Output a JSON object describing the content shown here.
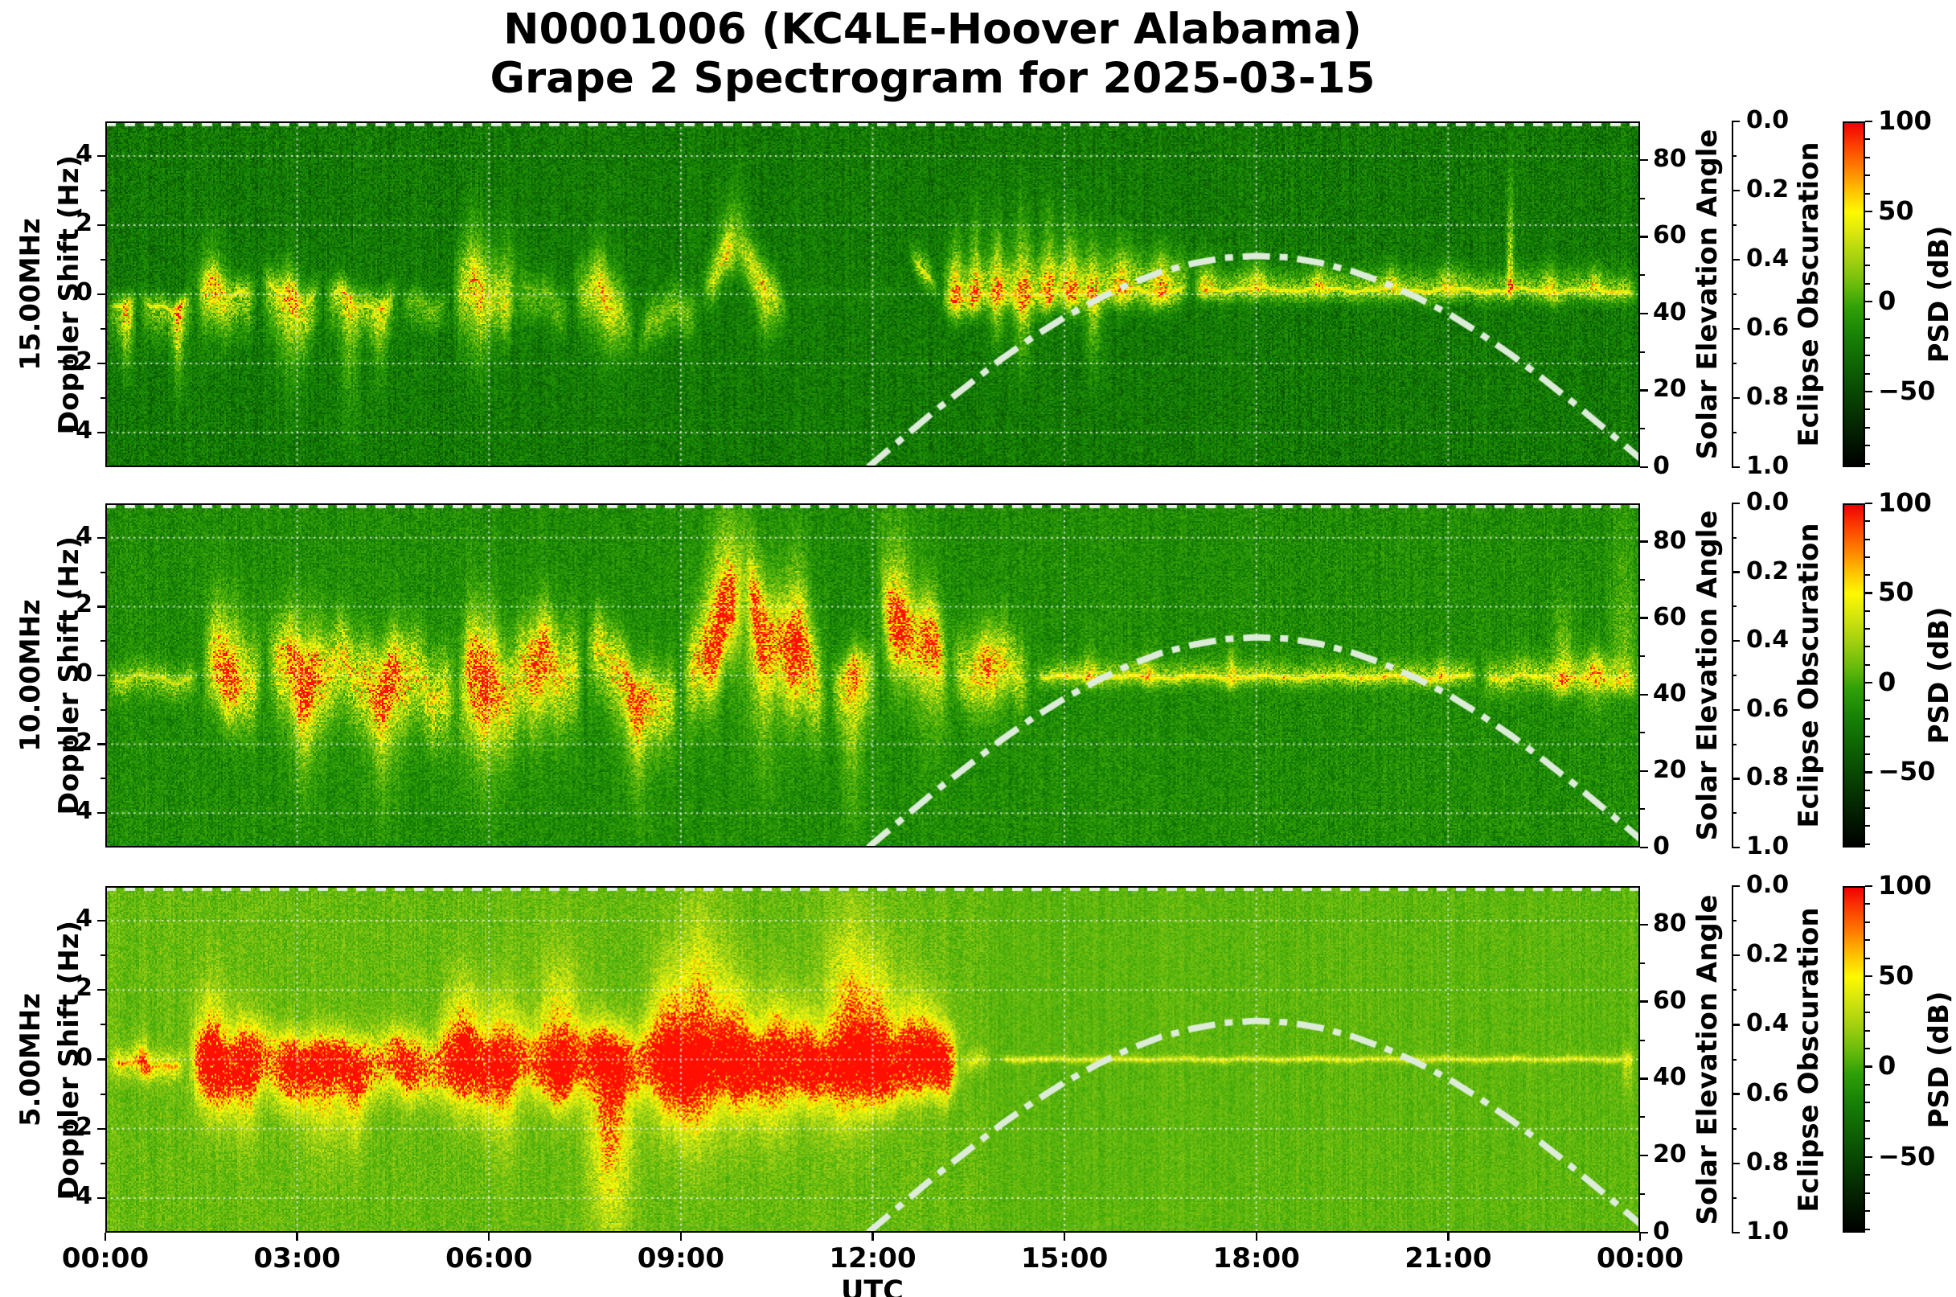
{
  "title": {
    "line1": "N0001006 (KC4LE-Hoover Alabama)",
    "line2": "Grape 2 Spectrogram for 2025-03-15"
  },
  "x_axis": {
    "label": "UTC",
    "tick_labels": [
      "00:00",
      "03:00",
      "06:00",
      "09:00",
      "12:00",
      "15:00",
      "18:00",
      "21:00",
      "00:00"
    ]
  },
  "panels": [
    {
      "freq_label": "15.00MHz",
      "doppler_label": "Doppler Shift (Hz)",
      "y_tick_labels": [
        "4",
        "2",
        "0",
        "−2",
        "−4"
      ]
    },
    {
      "freq_label": "10.00MHz",
      "doppler_label": "Doppler Shift (Hz)",
      "y_tick_labels": [
        "4",
        "2",
        "0",
        "−2",
        "−4"
      ]
    },
    {
      "freq_label": "5.00MHz",
      "doppler_label": "Doppler Shift (Hz)",
      "y_tick_labels": [
        "4",
        "2",
        "0",
        "−2",
        "−4"
      ]
    }
  ],
  "right_axes": {
    "solar": {
      "label": "Solar Elevation Angle",
      "tick_labels": [
        "80",
        "60",
        "40",
        "20",
        "0"
      ],
      "tick_values": [
        80,
        60,
        40,
        20,
        0
      ],
      "range": [
        0,
        90
      ]
    },
    "eclipse": {
      "label": "Eclipse Obscuration",
      "tick_labels": [
        "0.0",
        "0.2",
        "0.4",
        "0.6",
        "0.8",
        "1.0"
      ],
      "tick_values": [
        0,
        0.2,
        0.4,
        0.6,
        0.8,
        1.0
      ],
      "range": [
        0,
        1
      ],
      "inverted": true
    },
    "colorbar": {
      "label": "PSD (dB)",
      "tick_labels": [
        "100",
        "50",
        "0",
        "−50"
      ],
      "tick_values": [
        100,
        50,
        0,
        -50
      ],
      "range_top_to_bottom": [
        100,
        -92
      ]
    }
  },
  "colors": {
    "solar_curve": "#dcecd9",
    "eclipse_curve": "#e4f1e3",
    "grid": "rgba(255,255,255,0.72)",
    "figure_bg": "#ffffff"
  },
  "chart_data": {
    "type": "spectrogram",
    "x_range_hours": [
      0,
      24
    ],
    "doppler_range_hz": [
      -5,
      5
    ],
    "solar_elevation_range_deg": [
      0,
      90
    ],
    "eclipse_obscuration_range": [
      0,
      1
    ],
    "psd_range_db_top_to_bottom": [
      100,
      -92
    ],
    "grid": true,
    "value_colormap": [
      [
        0,
        "#053a01"
      ],
      [
        0.1,
        "#0b6202"
      ],
      [
        0.17,
        "#117a04"
      ],
      [
        0.24,
        "#1f8c05"
      ],
      [
        0.32,
        "#35a007"
      ],
      [
        0.4,
        "#55b30c"
      ],
      [
        0.48,
        "#79c011"
      ],
      [
        0.56,
        "#a2d214"
      ],
      [
        0.64,
        "#c8e312"
      ],
      [
        0.72,
        "#e8ef0c"
      ],
      [
        0.78,
        "#fdfd02"
      ],
      [
        0.84,
        "#ffd000"
      ],
      [
        0.9,
        "#ff9000"
      ],
      [
        0.95,
        "#ff4d00"
      ],
      [
        1,
        "#ff0f00"
      ]
    ],
    "colorbar_gradient": [
      [
        0,
        "#f20000"
      ],
      [
        0.06,
        "#fb3b00"
      ],
      [
        0.13,
        "#ff7e00"
      ],
      [
        0.2,
        "#ffc400"
      ],
      [
        0.26,
        "#fef900"
      ],
      [
        0.32,
        "#d9e70b"
      ],
      [
        0.4,
        "#a3d011"
      ],
      [
        0.48,
        "#64b90c"
      ],
      [
        0.54,
        "#2fa006"
      ],
      [
        0.62,
        "#188206"
      ],
      [
        0.7,
        "#0f6604"
      ],
      [
        0.78,
        "#094a03"
      ],
      [
        0.86,
        "#052e02"
      ],
      [
        1,
        "#000000"
      ]
    ],
    "solar_elevation": {
      "style": "dashdot",
      "points": [
        [
          11.93,
          0
        ],
        [
          12,
          1
        ],
        [
          12.5,
          8
        ],
        [
          13,
          15
        ],
        [
          13.5,
          21.5
        ],
        [
          14,
          28
        ],
        [
          14.5,
          33.8
        ],
        [
          15,
          39
        ],
        [
          15.5,
          43.6
        ],
        [
          16,
          47.6
        ],
        [
          16.5,
          50.8
        ],
        [
          17,
          53
        ],
        [
          17.5,
          54.5
        ],
        [
          18,
          55
        ],
        [
          18.5,
          54.6
        ],
        [
          19,
          53.2
        ],
        [
          19.5,
          51
        ],
        [
          20,
          48
        ],
        [
          20.5,
          44.3
        ],
        [
          21,
          40
        ],
        [
          21.5,
          34.8
        ],
        [
          22,
          29.1
        ],
        [
          22.5,
          22.8
        ],
        [
          23,
          16.2
        ],
        [
          23.5,
          9.3
        ],
        [
          24,
          2.3
        ],
        [
          24.1,
          0
        ]
      ]
    },
    "eclipse_obscuration": {
      "style": "dashed",
      "constant_value": 0.0
    },
    "spectrograms": [
      {
        "frequency_mhz": 15.0,
        "seed": 11,
        "core_width_hz": 0.09,
        "core_value": 0.78,
        "hot_value": 0.85,
        "hot_prob": 0.02,
        "zones": [
          [
            0,
            24,
            0.17,
            0.17
          ]
        ],
        "events": [
          [
            0,
            0.5,
            -0.3,
            -0.35,
            0.35,
            1.1,
            0.9,
            0.4,
            0.1
          ],
          [
            0.5,
            1.4,
            -0.35,
            -0.25,
            0.35,
            0.9,
            0.9,
            0.4,
            0.15
          ],
          [
            1.4,
            2.4,
            0.1,
            0.2,
            0.5,
            1.1,
            0.9,
            0.45,
            0.2
          ],
          [
            2.4,
            3.4,
            0,
            0,
            0.5,
            1.2,
            0.9,
            0.45,
            0.25
          ],
          [
            3.4,
            4.6,
            -0.1,
            -0.3,
            0.5,
            0.9,
            0.85,
            0.4,
            0.2
          ],
          [
            4.6,
            5.4,
            -0.3,
            -0.2,
            0.4,
            0.7,
            0.45,
            0.3,
            0.15
          ],
          [
            5.4,
            6.4,
            0,
            0,
            1.1,
            1.1,
            0.65,
            0.4,
            0.2
          ],
          [
            6.4,
            7.3,
            -0.2,
            -0.2,
            0.7,
            0.8,
            0.4,
            0.28,
            0.2
          ],
          [
            7.3,
            8.3,
            0.3,
            -0.8,
            0.9,
            0.9,
            0.7,
            0.4,
            0.25
          ],
          [
            8.3,
            9.3,
            -1.2,
            -0.2,
            0.7,
            0.7,
            0.55,
            0.35,
            0.25
          ],
          [
            9.3,
            9.9,
            0.2,
            1.4,
            0.6,
            0.8,
            0.8,
            0.4,
            0.15
          ],
          [
            9.9,
            10.7,
            1.4,
            -0.6,
            0.6,
            0.8,
            0.75,
            0.38,
            0.15
          ],
          [
            10.7,
            12.55,
            0,
            0,
            0.3,
            0.3,
            0.06,
            0.05,
            0
          ],
          [
            12.55,
            13.05,
            1.3,
            -0.15,
            0.5,
            0.4,
            0.95,
            0.5,
            0.1
          ],
          [
            13.05,
            17,
            -0.1,
            0.15,
            1.0,
            0.5,
            1.0,
            0.5,
            0.07
          ],
          [
            17,
            24,
            0.15,
            0.1,
            0.55,
            0.35,
            1.0,
            0.42,
            0.05
          ]
        ],
        "spikes": [
          [
            0.35,
            0.3,
            1.9,
            0.12,
            0.55
          ],
          [
            1.15,
            0.3,
            2.3,
            0.12,
            0.6
          ],
          [
            1.7,
            1.3,
            1.5,
            0.3,
            0.4
          ],
          [
            2.9,
            1.1,
            2.6,
            0.3,
            0.4
          ],
          [
            3.8,
            0.4,
            3.4,
            0.2,
            0.38
          ],
          [
            4.3,
            0.3,
            2.3,
            0.18,
            0.33
          ],
          [
            5.8,
            2.3,
            2.4,
            0.3,
            0.42
          ],
          [
            6.3,
            2.1,
            1.0,
            0.2,
            0.33
          ],
          [
            7.8,
            1.5,
            1.8,
            0.3,
            0.38
          ],
          [
            9.8,
            1.6,
            0.8,
            0.35,
            0.4
          ],
          [
            10.3,
            1.0,
            1.8,
            0.25,
            0.35
          ],
          [
            13.3,
            2.0,
            0.8,
            0.15,
            0.5
          ],
          [
            13.6,
            2.5,
            0.6,
            0.12,
            0.5
          ],
          [
            13.95,
            2.2,
            1.5,
            0.15,
            0.5
          ],
          [
            14.35,
            2.6,
            1.9,
            0.18,
            0.52
          ],
          [
            14.75,
            2.3,
            0.6,
            0.15,
            0.5
          ],
          [
            15.1,
            2.2,
            0.7,
            0.18,
            0.5
          ],
          [
            15.45,
            1.9,
            2.1,
            0.15,
            0.45
          ],
          [
            15.9,
            1.6,
            0.6,
            0.2,
            0.42
          ],
          [
            16.5,
            1.3,
            0.5,
            0.2,
            0.4
          ],
          [
            17.2,
            1.1,
            0.4,
            0.2,
            0.36
          ],
          [
            18.0,
            0.9,
            0.4,
            0.2,
            0.33
          ],
          [
            19.0,
            0.8,
            0.4,
            0.2,
            0.33
          ],
          [
            20.1,
            0.7,
            0.4,
            0.2,
            0.3
          ],
          [
            21.0,
            0.8,
            0.4,
            0.18,
            0.33
          ],
          [
            21.97,
            3.2,
            0.3,
            0.07,
            0.6
          ],
          [
            22.6,
            0.9,
            0.4,
            0.18,
            0.33
          ],
          [
            23.3,
            0.8,
            0.4,
            0.15,
            0.33
          ]
        ]
      },
      {
        "frequency_mhz": 10.0,
        "seed": 23,
        "core_width_hz": 0.11,
        "core_value": 0.78,
        "hot_value": 0.9,
        "hot_prob": 0.06,
        "zones": [
          [
            0,
            24,
            0.24,
            0.18
          ]
        ],
        "events": [
          [
            0,
            1.5,
            -0.1,
            -0.1,
            0.45,
            0.55,
            0.8,
            0.35,
            0.1
          ],
          [
            1.5,
            2.5,
            0,
            0,
            1.5,
            1.3,
            0.85,
            0.5,
            0.3
          ],
          [
            2.5,
            5.5,
            0.3,
            -0.4,
            1.3,
            1.5,
            0.95,
            0.55,
            0.35
          ],
          [
            5.5,
            7.5,
            -0.5,
            0.5,
            1.5,
            1.7,
            0.95,
            0.55,
            0.4
          ],
          [
            7.5,
            9.0,
            0.8,
            -1.3,
            1.1,
            1.4,
            0.95,
            0.55,
            0.3
          ],
          [
            9.0,
            10.0,
            0,
            2.4,
            1.4,
            1.7,
            0.9,
            0.55,
            0.3
          ],
          [
            10.0,
            11.3,
            2.2,
            -0.5,
            1.4,
            1.7,
            0.9,
            0.55,
            0.35
          ],
          [
            11.3,
            12.1,
            0,
            0,
            0.7,
            1.4,
            0.8,
            0.45,
            0.2
          ],
          [
            12.1,
            13.2,
            2.3,
            0.2,
            1.1,
            1.4,
            0.9,
            0.5,
            0.25
          ],
          [
            13.2,
            14.5,
            0.2,
            0,
            1.2,
            0.9,
            0.85,
            0.45,
            0.2
          ],
          [
            14.5,
            21.5,
            -0.05,
            -0.05,
            0.45,
            0.3,
            0.95,
            0.4,
            0.04
          ],
          [
            21.5,
            24,
            -0.05,
            -0.1,
            0.6,
            0.45,
            0.9,
            0.42,
            0.08
          ]
        ],
        "spikes": [
          [
            1.9,
            2.5,
            1.4,
            0.3,
            0.5
          ],
          [
            3.1,
            2.1,
            2.9,
            0.35,
            0.5
          ],
          [
            4.4,
            1.4,
            3.1,
            0.35,
            0.45
          ],
          [
            5.9,
            2.5,
            3.2,
            0.4,
            0.5
          ],
          [
            6.8,
            1.4,
            2.4,
            0.3,
            0.42
          ],
          [
            8.3,
            0.9,
            3.1,
            0.3,
            0.42
          ],
          [
            9.6,
            3.4,
            1.8,
            0.35,
            0.6
          ],
          [
            10.2,
            2.3,
            4.1,
            0.35,
            0.5
          ],
          [
            10.8,
            3.0,
            2.3,
            0.3,
            0.55
          ],
          [
            11.7,
            0.9,
            4.2,
            0.22,
            0.42
          ],
          [
            12.4,
            2.9,
            2.0,
            0.3,
            0.58
          ],
          [
            12.9,
            1.8,
            2.8,
            0.3,
            0.45
          ],
          [
            13.8,
            1.4,
            1.6,
            0.35,
            0.42
          ],
          [
            15.4,
            0.9,
            0.3,
            0.15,
            0.38
          ],
          [
            16.3,
            0.8,
            0.3,
            0.15,
            0.33
          ],
          [
            17.6,
            1.0,
            0.4,
            0.12,
            0.38
          ],
          [
            20.9,
            0.7,
            0.3,
            0.12,
            0.33
          ],
          [
            22.8,
            2.3,
            0.5,
            0.2,
            0.42
          ],
          [
            23.3,
            0.9,
            1.1,
            0.22,
            0.38
          ],
          [
            23.75,
            4.8,
            0.5,
            0.25,
            0.25
          ]
        ]
      },
      {
        "frequency_mhz": 5.0,
        "seed": 37,
        "core_width_hz": 0.14,
        "core_value": 0.88,
        "hot_value": 0.97,
        "hot_prob": 0.12,
        "zones": [
          [
            0,
            13.8,
            0.44,
            0.16
          ],
          [
            13.8,
            24,
            0.42,
            0.12
          ]
        ],
        "events": [
          [
            0,
            1.3,
            -0.15,
            -0.15,
            0.45,
            0.45,
            0.95,
            0.35,
            0.08
          ],
          [
            1.3,
            13.35,
            -0.15,
            -0.1,
            0.95,
            0.95,
            1.0,
            0.55,
            0.12
          ],
          [
            13.35,
            13.9,
            -0.1,
            -0.05,
            0.35,
            0.3,
            0.72,
            0.25,
            0.05
          ],
          [
            13.9,
            24,
            0,
            0,
            0.16,
            0.14,
            0.72,
            0.15,
            0.02
          ]
        ],
        "spikes": [
          [
            0.6,
            0.8,
            0.5,
            0.15,
            0.42
          ],
          [
            1.7,
            2.3,
            1.7,
            0.35,
            0.65
          ],
          [
            2.2,
            1.5,
            2.1,
            0.3,
            0.55
          ],
          [
            2.9,
            1.1,
            1.5,
            0.3,
            0.48
          ],
          [
            3.4,
            0.7,
            2.5,
            0.4,
            0.52
          ],
          [
            3.9,
            0.8,
            2.3,
            0.3,
            0.48
          ],
          [
            4.7,
            0.9,
            1.2,
            0.3,
            0.4
          ],
          [
            5.6,
            2.4,
            1.7,
            0.4,
            0.65
          ],
          [
            6.2,
            2.2,
            2.3,
            0.4,
            0.55
          ],
          [
            7.1,
            3.0,
            1.4,
            0.4,
            0.65
          ],
          [
            7.9,
            1.4,
            4.9,
            0.45,
            0.7
          ],
          [
            8.8,
            2.7,
            2.1,
            0.4,
            0.65
          ],
          [
            9.3,
            4.1,
            2.5,
            0.5,
            0.7
          ],
          [
            9.9,
            2.5,
            1.9,
            0.4,
            0.65
          ],
          [
            10.5,
            2.1,
            2.3,
            0.4,
            0.6
          ],
          [
            11.0,
            1.7,
            1.5,
            0.3,
            0.55
          ],
          [
            11.6,
            3.9,
            2.1,
            0.45,
            0.68
          ],
          [
            12.1,
            3.3,
            1.5,
            0.4,
            0.65
          ],
          [
            12.7,
            2.1,
            1.3,
            0.4,
            0.6
          ],
          [
            13.1,
            1.5,
            0.9,
            0.3,
            0.48
          ],
          [
            23.8,
            0.4,
            1.1,
            0.1,
            0.28
          ]
        ]
      }
    ]
  }
}
